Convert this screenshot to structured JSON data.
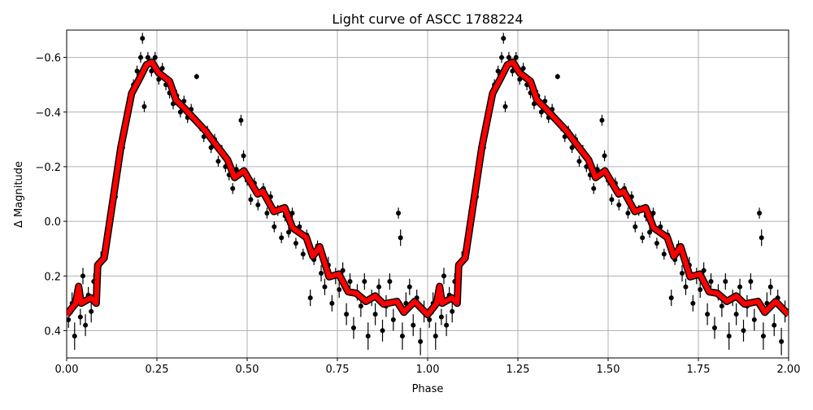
{
  "chart_data": {
    "type": "scatter",
    "title": "Light curve of ASCC 1788224",
    "xlabel": "Phase",
    "ylabel": "Δ Magnitude",
    "xlim": [
      0,
      2
    ],
    "ylim": [
      0.5,
      -0.7
    ],
    "y_inverted": true,
    "grid": true,
    "xticks": [
      0,
      0.25,
      0.5,
      0.75,
      1.0,
      1.25,
      1.5,
      1.75,
      2.0
    ],
    "xtick_labels": [
      "0.00",
      "0.25",
      "0.50",
      "0.75",
      "1.00",
      "1.25",
      "1.50",
      "1.75",
      "2.00"
    ],
    "yticks": [
      -0.6,
      -0.4,
      -0.2,
      0.0,
      0.2,
      0.4
    ],
    "ytick_labels": [
      "−0.6",
      "−0.4",
      "−0.2",
      "0.0",
      "0.2",
      "0.4"
    ],
    "colors": {
      "points": "#000000",
      "model": "#ff0000",
      "grid": "#b0b0b0"
    },
    "repeat_cycles": 2,
    "observations": [
      [
        0.005,
        0.36,
        0.03
      ],
      [
        0.015,
        0.3,
        0.04
      ],
      [
        0.022,
        0.42,
        0.05
      ],
      [
        0.03,
        0.26,
        0.03
      ],
      [
        0.038,
        0.35,
        0.03
      ],
      [
        0.045,
        0.2,
        0.03
      ],
      [
        0.052,
        0.38,
        0.04
      ],
      [
        0.06,
        0.27,
        0.03
      ],
      [
        0.068,
        0.33,
        0.04
      ],
      [
        0.075,
        0.22,
        0.03
      ],
      [
        0.085,
        0.18,
        0.03
      ],
      [
        0.095,
        0.14,
        0.03
      ],
      [
        0.105,
        0.1,
        0.03
      ],
      [
        0.115,
        0.05,
        0.03
      ],
      [
        0.125,
        -0.02,
        0.02
      ],
      [
        0.135,
        -0.09,
        0.02
      ],
      [
        0.145,
        -0.2,
        0.02
      ],
      [
        0.155,
        -0.27,
        0.02
      ],
      [
        0.165,
        -0.36,
        0.02
      ],
      [
        0.175,
        -0.45,
        0.02
      ],
      [
        0.185,
        -0.5,
        0.02
      ],
      [
        0.195,
        -0.55,
        0.02
      ],
      [
        0.205,
        -0.6,
        0.02
      ],
      [
        0.21,
        -0.67,
        0.02
      ],
      [
        0.215,
        -0.42,
        0.02
      ],
      [
        0.225,
        -0.6,
        0.02
      ],
      [
        0.235,
        -0.55,
        0.02
      ],
      [
        0.245,
        -0.6,
        0.02
      ],
      [
        0.255,
        -0.52,
        0.02
      ],
      [
        0.265,
        -0.56,
        0.02
      ],
      [
        0.275,
        -0.5,
        0.02
      ],
      [
        0.285,
        -0.47,
        0.02
      ],
      [
        0.295,
        -0.43,
        0.02
      ],
      [
        0.305,
        -0.46,
        0.02
      ],
      [
        0.315,
        -0.4,
        0.02
      ],
      [
        0.325,
        -0.44,
        0.02
      ],
      [
        0.335,
        -0.38,
        0.02
      ],
      [
        0.345,
        -0.41,
        0.02
      ],
      [
        0.36,
        -0.53,
        0.01
      ],
      [
        0.37,
        -0.35,
        0.02
      ],
      [
        0.38,
        -0.31,
        0.02
      ],
      [
        0.39,
        -0.33,
        0.02
      ],
      [
        0.4,
        -0.27,
        0.02
      ],
      [
        0.41,
        -0.3,
        0.02
      ],
      [
        0.42,
        -0.22,
        0.02
      ],
      [
        0.43,
        -0.26,
        0.02
      ],
      [
        0.44,
        -0.2,
        0.02
      ],
      [
        0.45,
        -0.17,
        0.02
      ],
      [
        0.46,
        -0.12,
        0.02
      ],
      [
        0.47,
        -0.19,
        0.02
      ],
      [
        0.483,
        -0.37,
        0.02
      ],
      [
        0.49,
        -0.24,
        0.02
      ],
      [
        0.5,
        -0.15,
        0.02
      ],
      [
        0.51,
        -0.08,
        0.02
      ],
      [
        0.52,
        -0.14,
        0.02
      ],
      [
        0.53,
        -0.06,
        0.02
      ],
      [
        0.545,
        -0.12,
        0.02
      ],
      [
        0.555,
        -0.03,
        0.02
      ],
      [
        0.565,
        -0.09,
        0.02
      ],
      [
        0.575,
        0.02,
        0.02
      ],
      [
        0.585,
        -0.04,
        0.02
      ],
      [
        0.595,
        0.06,
        0.02
      ],
      [
        0.605,
        -0.02,
        0.02
      ],
      [
        0.615,
        0.04,
        0.02
      ],
      [
        0.625,
        -0.03,
        0.02
      ],
      [
        0.635,
        0.08,
        0.02
      ],
      [
        0.645,
        0.02,
        0.02
      ],
      [
        0.655,
        0.12,
        0.02
      ],
      [
        0.665,
        0.05,
        0.02
      ],
      [
        0.675,
        0.28,
        0.03
      ],
      [
        0.685,
        0.14,
        0.02
      ],
      [
        0.695,
        0.09,
        0.02
      ],
      [
        0.705,
        0.19,
        0.03
      ],
      [
        0.715,
        0.24,
        0.03
      ],
      [
        0.725,
        0.16,
        0.03
      ],
      [
        0.735,
        0.3,
        0.03
      ],
      [
        0.745,
        0.2,
        0.03
      ],
      [
        0.755,
        0.25,
        0.03
      ],
      [
        0.765,
        0.18,
        0.03
      ],
      [
        0.775,
        0.34,
        0.04
      ],
      [
        0.785,
        0.22,
        0.03
      ],
      [
        0.795,
        0.39,
        0.04
      ],
      [
        0.805,
        0.26,
        0.03
      ],
      [
        0.815,
        0.31,
        0.04
      ],
      [
        0.825,
        0.22,
        0.03
      ],
      [
        0.835,
        0.42,
        0.05
      ],
      [
        0.845,
        0.28,
        0.03
      ],
      [
        0.855,
        0.34,
        0.04
      ],
      [
        0.865,
        0.24,
        0.03
      ],
      [
        0.875,
        0.4,
        0.04
      ],
      [
        0.885,
        0.31,
        0.04
      ],
      [
        0.895,
        0.22,
        0.03
      ],
      [
        0.905,
        0.36,
        0.04
      ],
      [
        0.919,
        -0.03,
        0.02
      ],
      [
        0.925,
        0.06,
        0.03
      ],
      [
        0.93,
        0.42,
        0.05
      ],
      [
        0.94,
        0.3,
        0.04
      ],
      [
        0.95,
        0.24,
        0.03
      ],
      [
        0.96,
        0.38,
        0.04
      ],
      [
        0.97,
        0.28,
        0.03
      ],
      [
        0.98,
        0.44,
        0.05
      ],
      [
        0.99,
        0.33,
        0.04
      ]
    ],
    "model": [
      [
        0,
        0.342
      ],
      [
        0.025,
        0.3
      ],
      [
        0.033,
        0.238
      ],
      [
        0.04,
        0.3
      ],
      [
        0.067,
        0.28
      ],
      [
        0.082,
        0.3
      ],
      [
        0.086,
        0.16
      ],
      [
        0.104,
        0.134
      ],
      [
        0.12,
        -0.006
      ],
      [
        0.15,
        -0.27
      ],
      [
        0.18,
        -0.468
      ],
      [
        0.202,
        -0.523
      ],
      [
        0.221,
        -0.573
      ],
      [
        0.236,
        -0.583
      ],
      [
        0.255,
        -0.543
      ],
      [
        0.285,
        -0.513
      ],
      [
        0.303,
        -0.444
      ],
      [
        0.326,
        -0.414
      ],
      [
        0.386,
        -0.329
      ],
      [
        0.405,
        -0.295
      ],
      [
        0.446,
        -0.225
      ],
      [
        0.465,
        -0.16
      ],
      [
        0.491,
        -0.185
      ],
      [
        0.529,
        -0.1
      ],
      [
        0.543,
        -0.11
      ],
      [
        0.574,
        -0.036
      ],
      [
        0.604,
        -0.05
      ],
      [
        0.626,
        0.024
      ],
      [
        0.664,
        0.059
      ],
      [
        0.682,
        0.128
      ],
      [
        0.701,
        0.093
      ],
      [
        0.727,
        0.203
      ],
      [
        0.754,
        0.193
      ],
      [
        0.78,
        0.258
      ],
      [
        0.802,
        0.263
      ],
      [
        0.829,
        0.293
      ],
      [
        0.855,
        0.273
      ],
      [
        0.878,
        0.303
      ],
      [
        0.915,
        0.293
      ],
      [
        0.934,
        0.333
      ],
      [
        0.964,
        0.293
      ],
      [
        1.0,
        0.342
      ]
    ]
  }
}
